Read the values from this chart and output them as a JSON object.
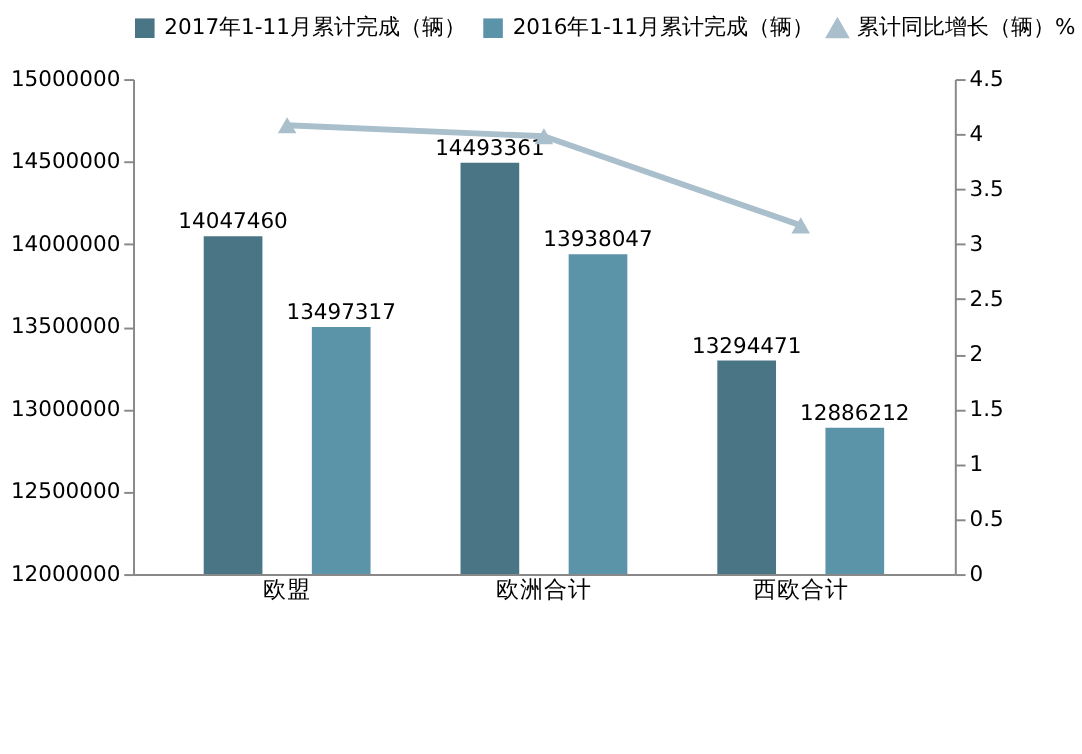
{
  "chart_data": {
    "type": "bar",
    "categories": [
      "欧盟",
      "欧洲合计",
      "西欧合计"
    ],
    "series": [
      {
        "name": "2017年1-11月累计完成（辆）",
        "color": "#4a7585",
        "values": [
          14047460,
          14493361,
          13294471
        ],
        "value_labels": [
          "14047460",
          "14493361",
          "13294471"
        ]
      },
      {
        "name": "2016年1-11月累计完成（辆）",
        "color": "#5b93a8",
        "values": [
          13497317,
          13938047,
          12886212
        ],
        "value_labels": [
          "13497317",
          "13938047",
          "12886212"
        ]
      },
      {
        "name": "累计同比增长（辆）%",
        "color": "#a9bfcc",
        "type": "line",
        "axis": "y2",
        "marker": "triangle",
        "values": [
          4.08,
          3.98,
          3.17
        ]
      }
    ],
    "ylim": [
      12000000,
      15000000
    ],
    "yticks": [
      12000000,
      12500000,
      13000000,
      13500000,
      14000000,
      14500000,
      15000000
    ],
    "y2lim": [
      0,
      4.5
    ],
    "y2ticks": [
      0,
      0.5,
      1,
      1.5,
      2,
      2.5,
      3,
      3.5,
      4,
      4.5
    ],
    "legend": "top",
    "grid": false
  }
}
